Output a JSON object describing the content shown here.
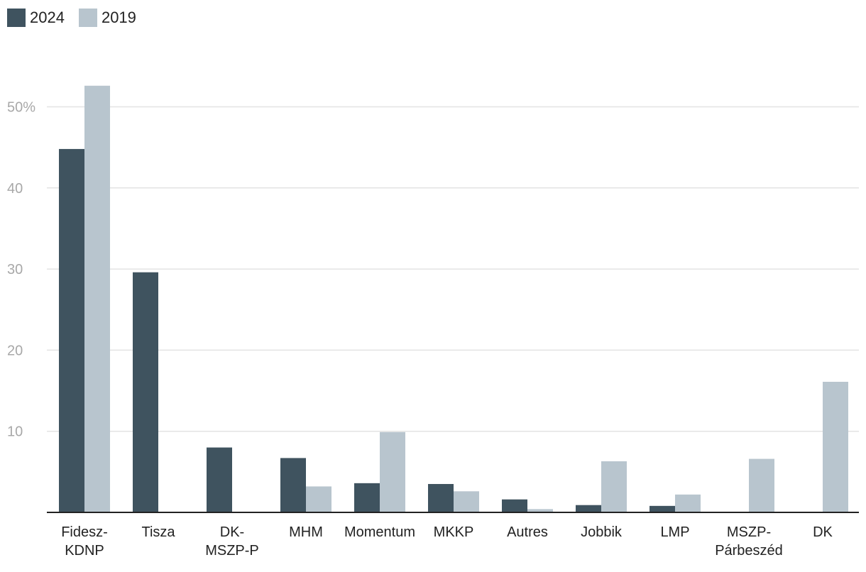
{
  "chart_data": {
    "type": "bar",
    "categories": [
      [
        "Fidesz-",
        "KDNP"
      ],
      [
        "Tisza"
      ],
      [
        "DK-",
        "MSZP-P"
      ],
      [
        "MHM"
      ],
      [
        "Momentum"
      ],
      [
        "MKKP"
      ],
      [
        "Autres"
      ],
      [
        "Jobbik"
      ],
      [
        "LMP"
      ],
      [
        "MSZP-",
        "Párbeszéd"
      ],
      [
        "DK"
      ]
    ],
    "series": [
      {
        "name": "2024",
        "color": "#3f535f",
        "values": [
          44.8,
          29.6,
          8.0,
          6.7,
          3.6,
          3.5,
          1.6,
          0.9,
          0.8,
          null,
          null
        ]
      },
      {
        "name": "2019",
        "color": "#b8c5ce",
        "values": [
          52.6,
          null,
          null,
          3.2,
          9.9,
          2.6,
          0.4,
          6.3,
          2.2,
          6.6,
          16.1
        ]
      }
    ],
    "ylim": [
      0,
      50
    ],
    "yticks": [
      {
        "value": 10,
        "label": "10"
      },
      {
        "value": 20,
        "label": "20"
      },
      {
        "value": 30,
        "label": "30"
      },
      {
        "value": 40,
        "label": "40"
      },
      {
        "value": 50,
        "label": "50%"
      }
    ],
    "grid": true,
    "legend_position": "top-left"
  }
}
